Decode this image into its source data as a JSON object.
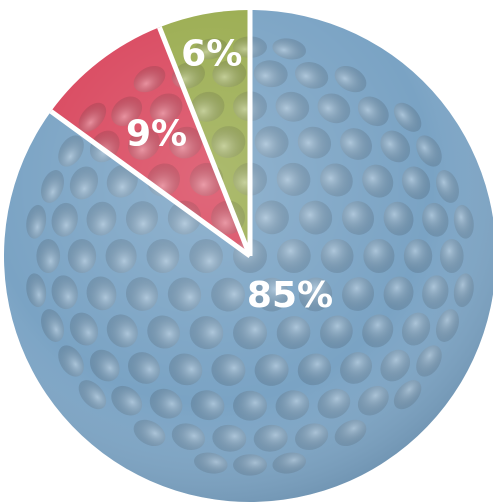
{
  "chart_data": {
    "type": "pie",
    "title": "",
    "start_angle_deg": 0,
    "direction": "clockwise",
    "slices": [
      {
        "label": "85%",
        "value": 85,
        "color": "#7aa3c4"
      },
      {
        "label": "9%",
        "value": 9,
        "color": "#d9475e"
      },
      {
        "label": "6%",
        "value": 6,
        "color": "#9aac4f"
      }
    ],
    "legend": "none",
    "style": "golf-ball dimpled texture"
  }
}
